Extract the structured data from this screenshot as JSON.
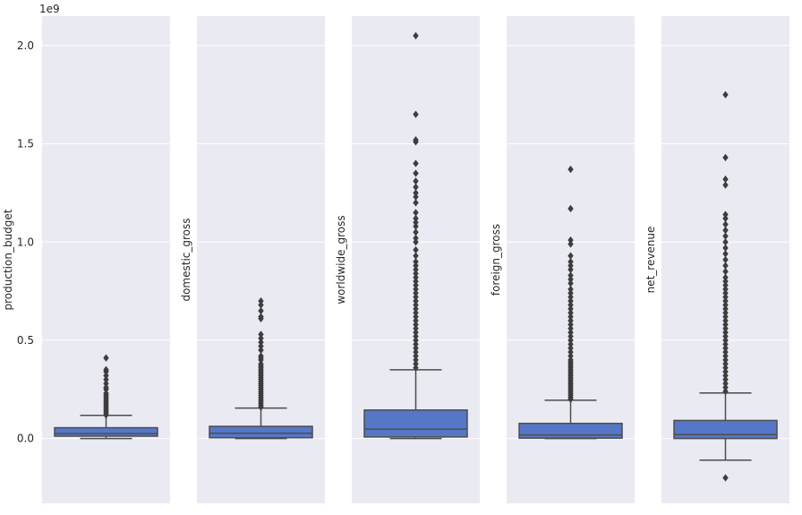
{
  "chart_data": {
    "type": "boxplot",
    "scale_offset": "1e9",
    "ylim": [
      -0.33,
      2.15
    ],
    "yticks": [
      0.0,
      0.5,
      1.0,
      1.5,
      2.0
    ],
    "ytick_labels": [
      "0.0",
      "0.5",
      "1.0",
      "1.5",
      "2.0"
    ],
    "box_color": "#5677c8",
    "panel_bg": "#eaeaf2",
    "line_color": "#4d4d4d",
    "panels": [
      {
        "ylabel": "production_budget",
        "whisker_low": 0.0,
        "q1": 0.012,
        "median": 0.025,
        "q3": 0.055,
        "whisker_high": 0.118,
        "outliers": [
          0.12,
          0.13,
          0.14,
          0.15,
          0.16,
          0.17,
          0.18,
          0.19,
          0.2,
          0.21,
          0.22,
          0.23,
          0.25,
          0.26,
          0.28,
          0.3,
          0.32,
          0.34,
          0.35,
          0.41
        ]
      },
      {
        "ylabel": "domestic_gross",
        "whisker_low": 0.0,
        "q1": 0.004,
        "median": 0.027,
        "q3": 0.062,
        "whisker_high": 0.155,
        "outliers": [
          0.16,
          0.17,
          0.18,
          0.19,
          0.2,
          0.21,
          0.22,
          0.23,
          0.24,
          0.25,
          0.26,
          0.27,
          0.28,
          0.29,
          0.3,
          0.31,
          0.32,
          0.33,
          0.34,
          0.35,
          0.36,
          0.37,
          0.38,
          0.4,
          0.41,
          0.42,
          0.45,
          0.47,
          0.49,
          0.51,
          0.53,
          0.61,
          0.62,
          0.65,
          0.68,
          0.7
        ]
      },
      {
        "ylabel": "worldwide_gross",
        "whisker_low": 0.0,
        "q1": 0.008,
        "median": 0.048,
        "q3": 0.145,
        "whisker_high": 0.35,
        "outliers": [
          0.36,
          0.38,
          0.4,
          0.42,
          0.44,
          0.46,
          0.48,
          0.5,
          0.52,
          0.54,
          0.56,
          0.58,
          0.6,
          0.62,
          0.64,
          0.66,
          0.68,
          0.7,
          0.72,
          0.74,
          0.76,
          0.78,
          0.8,
          0.82,
          0.84,
          0.86,
          0.88,
          0.9,
          0.93,
          0.96,
          1.0,
          1.02,
          1.05,
          1.08,
          1.1,
          1.12,
          1.15,
          1.2,
          1.23,
          1.25,
          1.28,
          1.31,
          1.35,
          1.4,
          1.51,
          1.52,
          1.65,
          2.05
        ]
      },
      {
        "ylabel": "foreign_gross",
        "whisker_low": 0.0,
        "q1": 0.002,
        "median": 0.018,
        "q3": 0.077,
        "whisker_high": 0.195,
        "outliers": [
          0.2,
          0.21,
          0.22,
          0.23,
          0.24,
          0.25,
          0.26,
          0.27,
          0.28,
          0.29,
          0.3,
          0.31,
          0.32,
          0.33,
          0.34,
          0.35,
          0.36,
          0.37,
          0.38,
          0.39,
          0.4,
          0.42,
          0.44,
          0.46,
          0.48,
          0.5,
          0.52,
          0.54,
          0.56,
          0.58,
          0.6,
          0.62,
          0.64,
          0.66,
          0.68,
          0.7,
          0.72,
          0.74,
          0.76,
          0.79,
          0.81,
          0.83,
          0.86,
          0.88,
          0.9,
          0.93,
          0.99,
          1.01,
          1.17,
          1.37
        ]
      },
      {
        "ylabel": "net_revenue",
        "whisker_low": -0.11,
        "q1": 0.0,
        "median": 0.02,
        "q3": 0.092,
        "whisker_high": 0.232,
        "outliers": [
          -0.2,
          0.24,
          0.26,
          0.28,
          0.3,
          0.32,
          0.34,
          0.36,
          0.38,
          0.4,
          0.42,
          0.44,
          0.46,
          0.48,
          0.5,
          0.52,
          0.54,
          0.56,
          0.58,
          0.6,
          0.62,
          0.64,
          0.66,
          0.68,
          0.7,
          0.72,
          0.74,
          0.76,
          0.78,
          0.8,
          0.82,
          0.85,
          0.88,
          0.91,
          0.94,
          0.97,
          1.0,
          1.03,
          1.06,
          1.09,
          1.12,
          1.14,
          1.29,
          1.32,
          1.43,
          1.75
        ]
      }
    ]
  }
}
